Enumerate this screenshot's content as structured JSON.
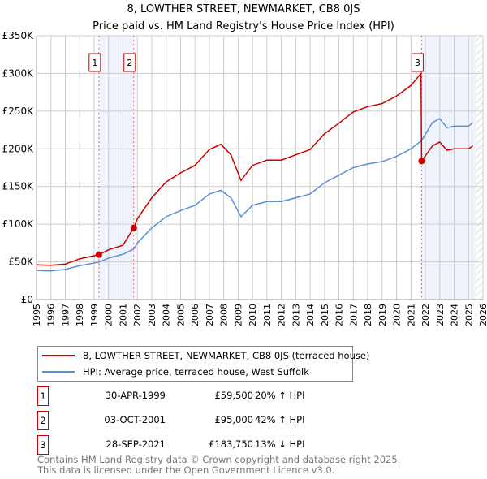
{
  "chart_data": {
    "type": "line",
    "title": "8, LOWTHER STREET, NEWMARKET, CB8 0JS",
    "subtitle": "Price paid vs. HM Land Registry's House Price Index (HPI)",
    "xlim": [
      1995,
      2026
    ],
    "ylim": [
      0,
      350000
    ],
    "x_ticks": [
      "1995",
      "1996",
      "1997",
      "1998",
      "1999",
      "2000",
      "2001",
      "2002",
      "2003",
      "2004",
      "2005",
      "2006",
      "2007",
      "2008",
      "2009",
      "2010",
      "2011",
      "2012",
      "2013",
      "2014",
      "2015",
      "2016",
      "2017",
      "2018",
      "2019",
      "2020",
      "2021",
      "2022",
      "2023",
      "2024",
      "2025",
      "2026"
    ],
    "y_ticks": [
      {
        "v": 0,
        "label": "£0"
      },
      {
        "v": 50000,
        "label": "£50K"
      },
      {
        "v": 100000,
        "label": "£100K"
      },
      {
        "v": 150000,
        "label": "£150K"
      },
      {
        "v": 200000,
        "label": "£200K"
      },
      {
        "v": 250000,
        "label": "£250K"
      },
      {
        "v": 300000,
        "label": "£300K"
      },
      {
        "v": 350000,
        "label": "£350K"
      }
    ],
    "grid": true,
    "series": [
      {
        "name": "8, LOWTHER STREET, NEWMARKET, CB8 0JS (terraced house)",
        "color": "#cc0000",
        "x": [
          1995,
          1996,
          1997,
          1998,
          1999.33,
          2000,
          2001,
          2001.75,
          2002,
          2003,
          2004,
          2005,
          2006,
          2007,
          2007.8,
          2008.5,
          2009.2,
          2010,
          2011,
          2012,
          2013,
          2014,
          2015,
          2016,
          2017,
          2018,
          2019,
          2020,
          2021,
          2021.7,
          2021.74,
          2022.5,
          2023,
          2023.5,
          2024,
          2025,
          2025.3
        ],
        "y": [
          46000,
          45500,
          47000,
          54000,
          59500,
          66000,
          72000,
          95000,
          107000,
          135000,
          156000,
          168000,
          178000,
          199000,
          206000,
          192000,
          158000,
          178000,
          185000,
          185000,
          192000,
          199000,
          220000,
          234000,
          249000,
          256000,
          260000,
          270000,
          284000,
          300000,
          183750,
          204000,
          209000,
          198000,
          200000,
          200000,
          204000
        ]
      },
      {
        "name": "HPI: Average price, terraced house, West Suffolk",
        "color": "#5b8ed6",
        "x": [
          1995,
          1996,
          1997,
          1998,
          1999.33,
          2000,
          2001,
          2001.75,
          2002,
          2003,
          2004,
          2005,
          2006,
          2007,
          2007.8,
          2008.5,
          2009.2,
          2010,
          2011,
          2012,
          2013,
          2014,
          2015,
          2016,
          2017,
          2018,
          2019,
          2020,
          2021,
          2021.74,
          2022.5,
          2023,
          2023.5,
          2024,
          2025,
          2025.3
        ],
        "y": [
          38500,
          38000,
          40000,
          45000,
          49600,
          55000,
          60000,
          67000,
          75000,
          95000,
          110000,
          118000,
          125000,
          140000,
          145000,
          135000,
          110000,
          125000,
          130000,
          130000,
          135000,
          140000,
          155000,
          165000,
          175000,
          180000,
          183000,
          190000,
          200000,
          211000,
          235000,
          240000,
          228000,
          230000,
          230000,
          235000
        ]
      }
    ],
    "sales": [
      {
        "n": "1",
        "date": "30-APR-1999",
        "x": 1999.33,
        "price": "£59,500",
        "value": 59500,
        "hpi": "20% ↑ HPI"
      },
      {
        "n": "2",
        "date": "03-OCT-2001",
        "x": 2001.75,
        "price": "£95,000",
        "value": 95000,
        "hpi": "42% ↑ HPI"
      },
      {
        "n": "3",
        "date": "28-SEP-2021",
        "x": 2021.74,
        "price": "£183,750",
        "value": 183750,
        "hpi": "13% ↓ HPI"
      }
    ],
    "shaded": [
      [
        1999.33,
        2001.75
      ],
      [
        2021.74,
        2025.5
      ]
    ],
    "legend": "bottom"
  },
  "footer": [
    "Contains HM Land Registry data © Crown copyright and database right 2025.",
    "This data is licensed under the Open Government Licence v3.0."
  ]
}
